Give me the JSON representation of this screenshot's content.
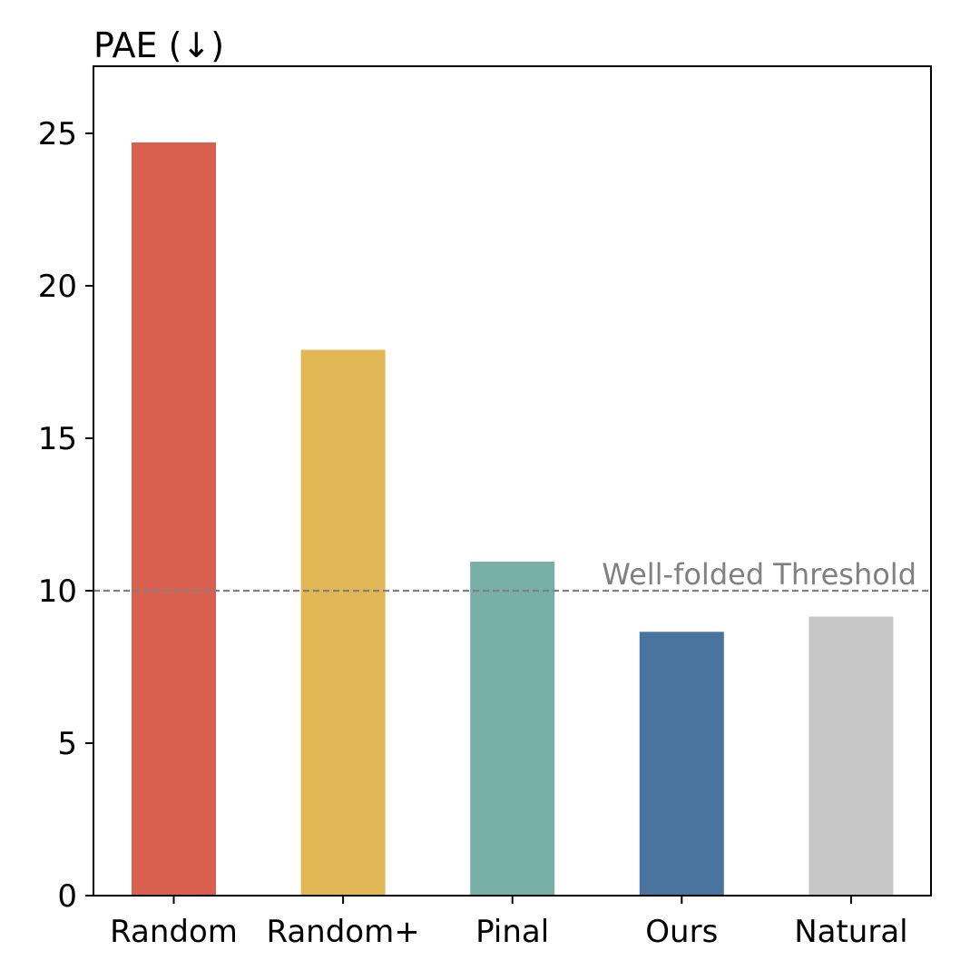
{
  "chart_data": {
    "type": "bar",
    "title": "PAE (↓)",
    "xlabel": "",
    "ylabel": "",
    "categories": [
      "Random",
      "Random+",
      "Pinal",
      "Ours",
      "Natural"
    ],
    "values": [
      24.7,
      17.9,
      10.95,
      8.65,
      9.15
    ],
    "colors": [
      "#D9604F",
      "#E2B856",
      "#78AFA6",
      "#49749E",
      "#C7C7C7"
    ],
    "ylim": [
      0,
      27.2
    ],
    "yticks": [
      "0",
      "5",
      "10",
      "15",
      "20",
      "25"
    ],
    "grid": false,
    "reference_line": {
      "value": 10,
      "label": "Well-folded Threshold",
      "color": "#808080",
      "style": "dashed"
    }
  }
}
